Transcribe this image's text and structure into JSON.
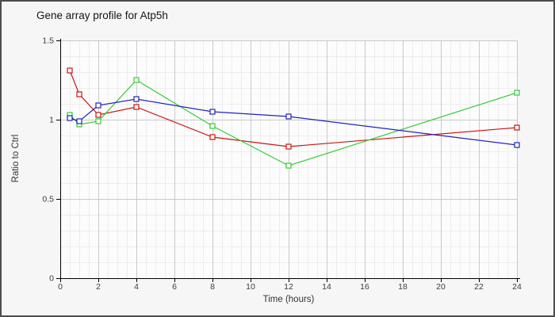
{
  "chart_data": {
    "type": "line",
    "title": "Gene array profile for Atp5h",
    "xlabel": "Time (hours)",
    "ylabel": "Ratio to Ctrl",
    "x": [
      0.5,
      1,
      2,
      4,
      8,
      12,
      24
    ],
    "series": [
      {
        "name": "red-series",
        "color": "#cc1414",
        "marker": "open-square",
        "values": [
          1.31,
          1.16,
          1.03,
          1.08,
          0.89,
          0.83,
          0.95
        ]
      },
      {
        "name": "green-series",
        "color": "#33cc33",
        "marker": "open-square",
        "values": [
          1.03,
          0.97,
          0.99,
          1.25,
          0.96,
          0.71,
          1.17
        ]
      },
      {
        "name": "blue-series",
        "color": "#2222bf",
        "marker": "open-square",
        "values": [
          1.01,
          0.99,
          1.09,
          1.13,
          1.05,
          1.02,
          0.84
        ]
      }
    ],
    "xlim": [
      0,
      24
    ],
    "ylim": [
      0,
      1.5
    ],
    "x_ticks": [
      0,
      2,
      4,
      6,
      8,
      10,
      12,
      14,
      16,
      18,
      20,
      22,
      24
    ],
    "y_ticks": [
      0,
      0.5,
      1,
      1.5
    ],
    "y_tick_labels": [
      "0",
      "0.5",
      "1",
      "1.5"
    ],
    "x_minor_step": 0.5,
    "y_minor_step": 0.1,
    "grid": "major+minor",
    "legend": "none",
    "colors": {
      "axis": "#000000",
      "grid_major": "#c9c9c9",
      "grid_minor": "#ededed",
      "plot_background": "#fcfcfc",
      "outer_background": "#f6f6f6",
      "frame_border": "#4d4d4d",
      "title_text": "#151515",
      "tick_text": "#3c3c3c"
    }
  }
}
